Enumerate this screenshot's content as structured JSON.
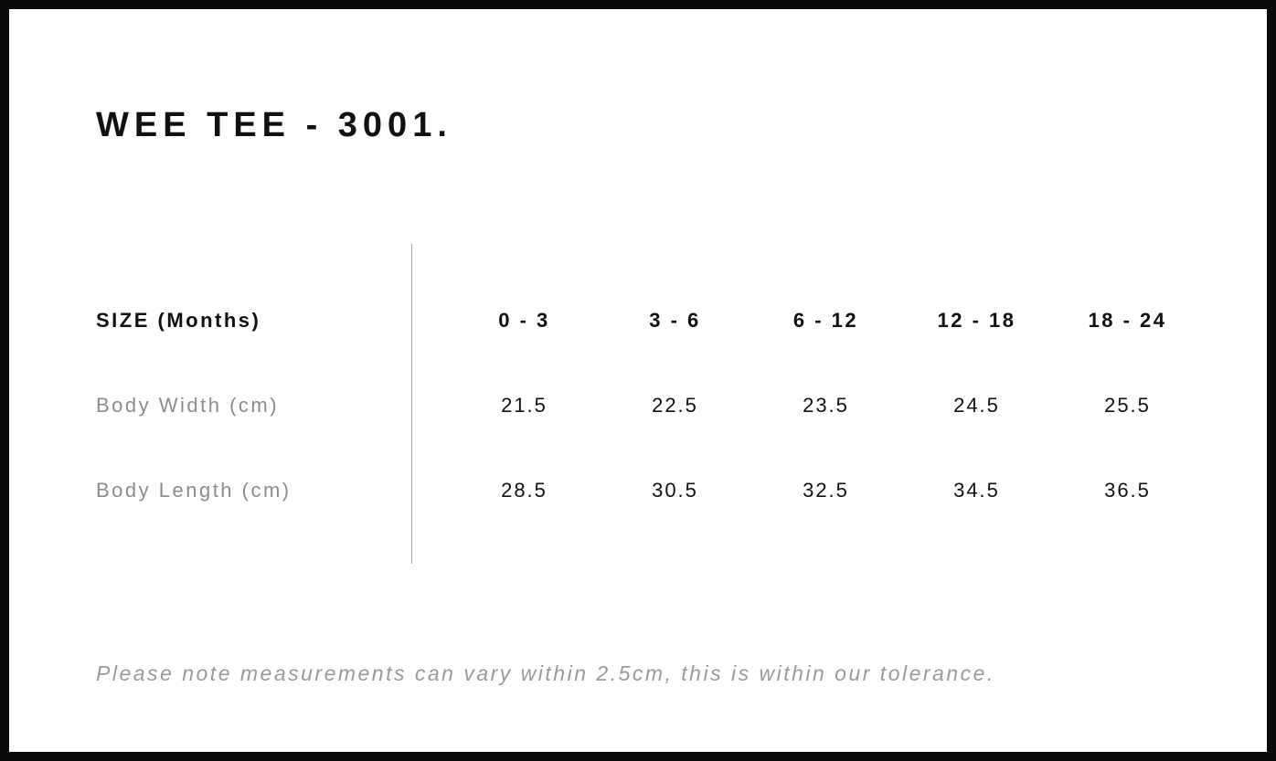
{
  "title": "WEE TEE - 3001.",
  "table": {
    "header_label": "SIZE (Months)",
    "columns": [
      "0 - 3",
      "3 - 6",
      "6 - 12",
      "12 - 18",
      "18 - 24"
    ],
    "rows": [
      {
        "label": "Body Width (cm)",
        "values": [
          "21.5",
          "22.5",
          "23.5",
          "24.5",
          "25.5"
        ]
      },
      {
        "label": "Body Length (cm)",
        "values": [
          "28.5",
          "30.5",
          "32.5",
          "34.5",
          "36.5"
        ]
      }
    ]
  },
  "note": "Please note measurements can vary within 2.5cm, this is within our tolerance.",
  "colors": {
    "border": "#0a0a0a",
    "text": "#111111",
    "muted_label": "#8c8c8c",
    "note": "#9a9a9a",
    "divider": "#a8a8a8"
  },
  "chart_data": {
    "type": "table",
    "title": "WEE TEE - 3001.",
    "categories": [
      "0 - 3",
      "3 - 6",
      "6 - 12",
      "12 - 18",
      "18 - 24"
    ],
    "series": [
      {
        "name": "Body Width (cm)",
        "values": [
          21.5,
          22.5,
          23.5,
          24.5,
          25.5
        ]
      },
      {
        "name": "Body Length (cm)",
        "values": [
          28.5,
          30.5,
          32.5,
          34.5,
          36.5
        ]
      }
    ],
    "xlabel": "SIZE (Months)",
    "ylabel": ""
  }
}
